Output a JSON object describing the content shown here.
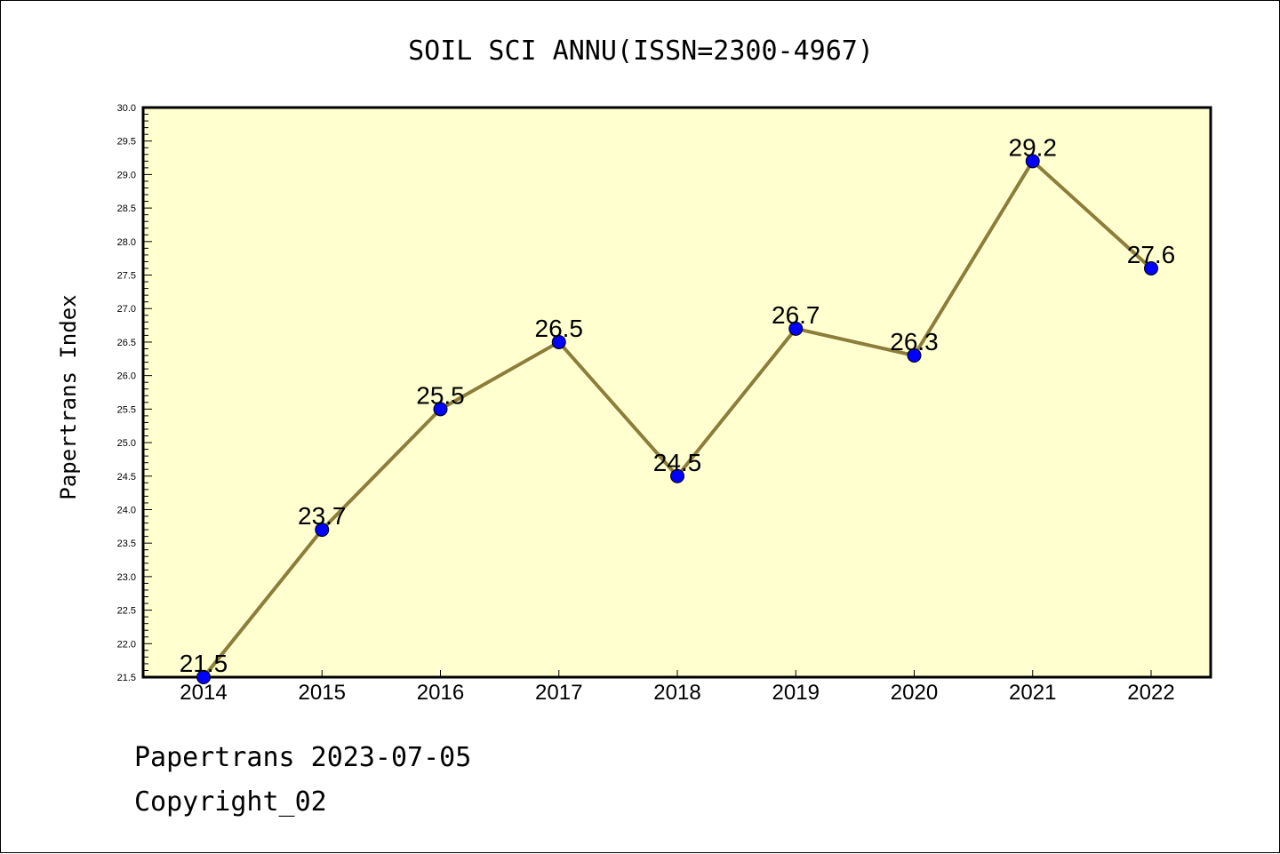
{
  "chart_data": {
    "type": "line",
    "title": "SOIL SCI ANNU(ISSN=2300-4967)",
    "xlabel": "",
    "ylabel": "Papertrans Index",
    "categories": [
      "2014",
      "2015",
      "2016",
      "2017",
      "2018",
      "2019",
      "2020",
      "2021",
      "2022"
    ],
    "series": [
      {
        "values": [
          21.5,
          23.7,
          25.5,
          26.5,
          24.5,
          26.7,
          26.3,
          29.2,
          27.6
        ]
      }
    ],
    "data_labels": [
      "21.5",
      "23.7",
      "25.5",
      "26.5",
      "24.5",
      "26.7",
      "26.3",
      "29.2",
      "27.6"
    ],
    "ylim": [
      21.5,
      30.0
    ],
    "y_major_step": 0.5,
    "y_minor_step": 0.1,
    "y_tick_labels": [
      "21.5",
      "22.0",
      "22.5",
      "23.0",
      "23.5",
      "24.0",
      "24.5",
      "25.0",
      "25.5",
      "26.0",
      "26.5",
      "27.0",
      "27.5",
      "28.0",
      "28.5",
      "29.0",
      "29.5",
      "30.0"
    ],
    "grid": false,
    "legend": "none",
    "colors": {
      "plot_background": "#ffffd0",
      "line": "#8c7d3a",
      "marker": "#0000ff"
    }
  },
  "footer": {
    "line1": "Papertrans 2023-07-05",
    "line2": "Copyright_02"
  }
}
